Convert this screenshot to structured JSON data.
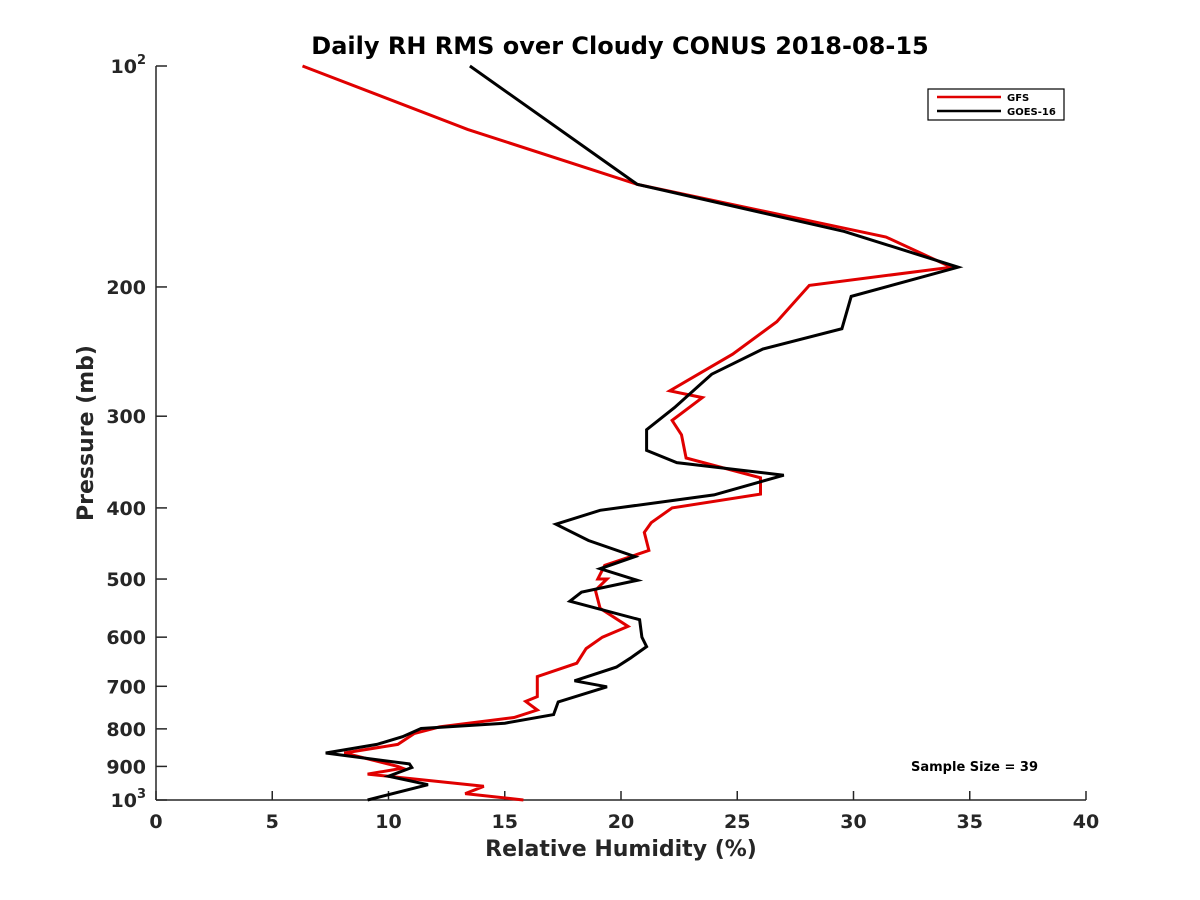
{
  "chart_data": {
    "type": "line",
    "title": "Daily RH RMS over Cloudy CONUS 2018-08-15",
    "xlabel": "Relative Humidity (%)",
    "ylabel": "Pressure (mb)",
    "xlim": [
      0,
      40
    ],
    "ylim": [
      100,
      1000
    ],
    "yscale": "log",
    "y_reversed": true,
    "x_ticks": [
      0,
      5,
      10,
      15,
      20,
      25,
      30,
      35,
      40
    ],
    "x_tick_labels": [
      "0",
      "5",
      "10",
      "15",
      "20",
      "25",
      "30",
      "35",
      "40"
    ],
    "y_ticks": [
      {
        "value": 100,
        "label": "10",
        "sup": "2"
      },
      {
        "value": 200,
        "label": "200",
        "sup": ""
      },
      {
        "value": 300,
        "label": "300",
        "sup": ""
      },
      {
        "value": 400,
        "label": "400",
        "sup": ""
      },
      {
        "value": 500,
        "label": "500",
        "sup": ""
      },
      {
        "value": 600,
        "label": "600",
        "sup": ""
      },
      {
        "value": 700,
        "label": "700",
        "sup": ""
      },
      {
        "value": 800,
        "label": "800",
        "sup": ""
      },
      {
        "value": 900,
        "label": "900",
        "sup": ""
      },
      {
        "value": 1000,
        "label": "10",
        "sup": "3"
      }
    ],
    "grid": false,
    "legend_position": "top-right",
    "annotation": "Sample Size = 39",
    "series": [
      {
        "name": "GFS",
        "color": "#e00000",
        "points": [
          [
            6.3,
            100
          ],
          [
            13.4,
            122
          ],
          [
            20.7,
            145
          ],
          [
            31.4,
            171
          ],
          [
            34.2,
            188
          ],
          [
            28.1,
            199
          ],
          [
            26.7,
            223
          ],
          [
            24.8,
            247
          ],
          [
            22.1,
            277
          ],
          [
            23.5,
            283
          ],
          [
            22.2,
            304
          ],
          [
            22.6,
            318
          ],
          [
            22.8,
            342
          ],
          [
            26.0,
            364
          ],
          [
            26.0,
            383
          ],
          [
            22.2,
            400
          ],
          [
            21.3,
            419
          ],
          [
            21.0,
            432
          ],
          [
            21.2,
            457
          ],
          [
            19.3,
            479
          ],
          [
            19.0,
            500
          ],
          [
            19.4,
            500
          ],
          [
            18.9,
            518
          ],
          [
            19.1,
            548
          ],
          [
            20.3,
            580
          ],
          [
            19.2,
            600
          ],
          [
            18.5,
            622
          ],
          [
            18.1,
            651
          ],
          [
            16.4,
            679
          ],
          [
            16.4,
            723
          ],
          [
            15.9,
            734
          ],
          [
            16.4,
            754
          ],
          [
            15.4,
            772
          ],
          [
            12.2,
            795
          ],
          [
            11.1,
            812
          ],
          [
            10.4,
            840
          ],
          [
            8.1,
            863
          ],
          [
            10.4,
            900
          ],
          [
            10.6,
            905
          ],
          [
            9.1,
            922
          ],
          [
            14.1,
            958
          ],
          [
            13.3,
            980
          ],
          [
            15.8,
            1000
          ]
        ]
      },
      {
        "name": "GOES-16",
        "color": "#000000",
        "points": [
          [
            13.5,
            100
          ],
          [
            20.7,
            145
          ],
          [
            29.6,
            168
          ],
          [
            34.5,
            188
          ],
          [
            29.9,
            206
          ],
          [
            29.5,
            228
          ],
          [
            26.1,
            243
          ],
          [
            23.9,
            263
          ],
          [
            22.3,
            292
          ],
          [
            21.1,
            313
          ],
          [
            21.1,
            334
          ],
          [
            22.4,
            347
          ],
          [
            27.0,
            361
          ],
          [
            24.0,
            384
          ],
          [
            19.1,
            403
          ],
          [
            17.2,
            421
          ],
          [
            18.6,
            443
          ],
          [
            20.6,
            466
          ],
          [
            19.1,
            484
          ],
          [
            20.7,
            502
          ],
          [
            18.3,
            521
          ],
          [
            17.8,
            536
          ],
          [
            20.8,
            568
          ],
          [
            20.9,
            600
          ],
          [
            21.1,
            618
          ],
          [
            20.4,
            641
          ],
          [
            19.8,
            659
          ],
          [
            18.0,
            688
          ],
          [
            19.4,
            701
          ],
          [
            17.3,
            735
          ],
          [
            17.1,
            765
          ],
          [
            15.0,
            786
          ],
          [
            11.4,
            799
          ],
          [
            10.6,
            820
          ],
          [
            9.5,
            840
          ],
          [
            7.3,
            863
          ],
          [
            10.9,
            893
          ],
          [
            11.0,
            903
          ],
          [
            10.0,
            928
          ],
          [
            11.7,
            953
          ],
          [
            9.1,
            1000
          ]
        ]
      }
    ]
  }
}
